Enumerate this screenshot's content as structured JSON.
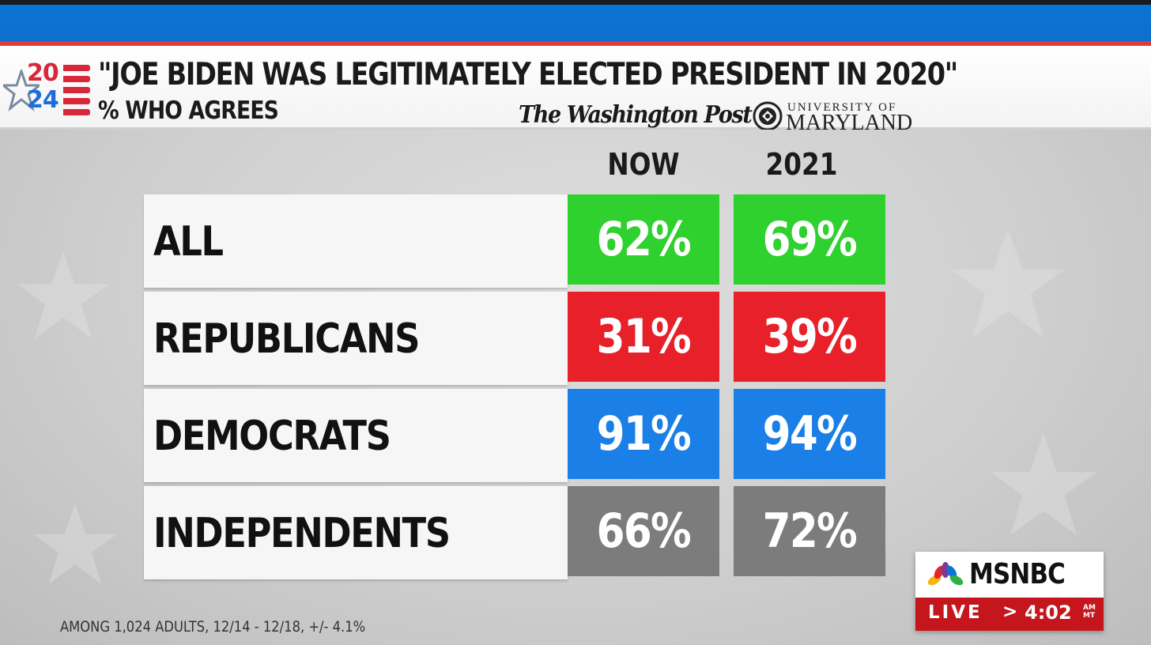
{
  "header": {
    "logo_year_top": "20",
    "logo_year_bottom": "24",
    "title": "\"JOE BIDEN WAS LEGITIMATELY ELECTED PRESIDENT IN 2020\"",
    "subtitle": "% WHO AGREES",
    "source_1": "The Washington Post",
    "source_2_line1": "UNIVERSITY OF",
    "source_2_line2": "MARYLAND"
  },
  "columns": {
    "now": "NOW",
    "prior": "2021"
  },
  "rows": [
    {
      "label": "ALL",
      "now": "62%",
      "prior": "69%",
      "color": "#2fd12f"
    },
    {
      "label": "REPUBLICANS",
      "now": "31%",
      "prior": "39%",
      "color": "#e8202a"
    },
    {
      "label": "DEMOCRATS",
      "now": "91%",
      "prior": "94%",
      "color": "#1a7fe6"
    },
    {
      "label": "INDEPENDENTS",
      "now": "66%",
      "prior": "72%",
      "color": "#7c7c7c"
    }
  ],
  "footnote": "AMONG 1,024 ADULTS, 12/14 - 12/18, +/- 4.1%",
  "network": {
    "name": "MSNBC",
    "live": "LIVE",
    "arrow": ">",
    "time": "4:02",
    "ampm": "AM",
    "zone": "MT"
  },
  "colors": {
    "brand_blue": "#0e6fce",
    "header_red": "#e23a3a",
    "msnbc_red": "#c4161c"
  },
  "icons": [
    "star-icon",
    "umd-seal-icon",
    "peacock-icon"
  ]
}
